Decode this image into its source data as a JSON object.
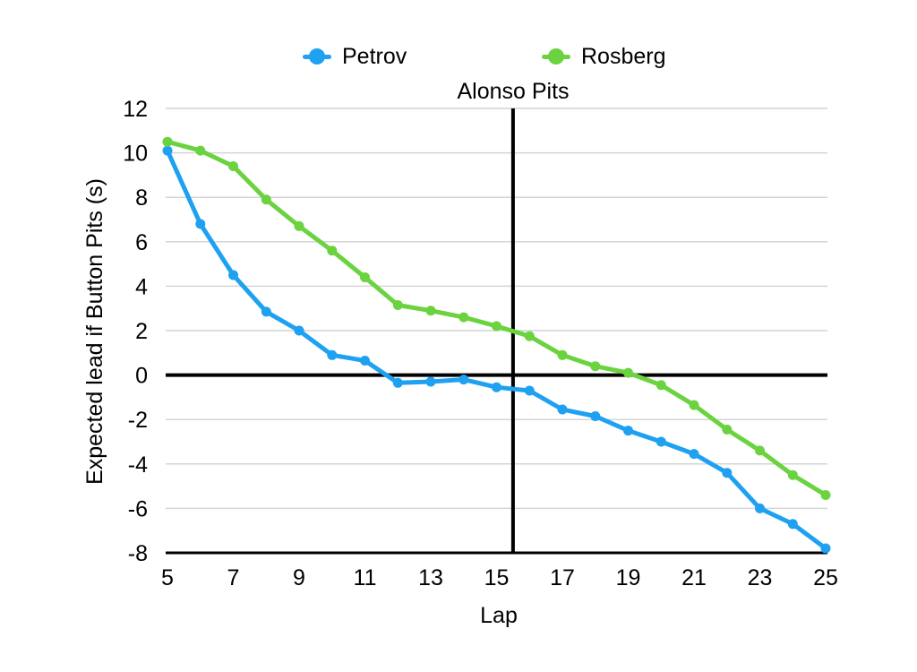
{
  "chart_data": {
    "type": "line",
    "title": "Alonso Pits",
    "xlabel": "Lap",
    "ylabel": "Expected lead if Button Pits (s)",
    "x": [
      5,
      6,
      7,
      8,
      9,
      10,
      11,
      12,
      13,
      14,
      15,
      16,
      17,
      18,
      19,
      20,
      21,
      22,
      23,
      24,
      25
    ],
    "series": [
      {
        "name": "Petrov",
        "color": "#1FA1F1",
        "values": [
          10.1,
          6.8,
          4.5,
          2.85,
          2.0,
          0.9,
          0.65,
          -0.35,
          -0.3,
          -0.2,
          -0.55,
          -0.7,
          -1.55,
          -1.85,
          -2.5,
          -3.0,
          -3.55,
          -4.4,
          -6.0,
          -6.7,
          -7.8
        ]
      },
      {
        "name": "Rosberg",
        "color": "#6BD33F",
        "values": [
          10.5,
          10.1,
          9.4,
          7.9,
          6.7,
          5.6,
          4.4,
          3.15,
          2.9,
          2.6,
          2.2,
          1.75,
          0.9,
          0.4,
          0.1,
          -0.45,
          -1.35,
          -2.45,
          -3.4,
          -4.5,
          -5.4
        ]
      }
    ],
    "xticks": [
      5,
      7,
      9,
      11,
      13,
      15,
      17,
      19,
      21,
      23,
      25
    ],
    "yticks": [
      12,
      10,
      8,
      6,
      4,
      2,
      0,
      -2,
      -4,
      -6,
      -8
    ],
    "xlim": [
      5,
      25
    ],
    "ylim": [
      -8,
      12
    ],
    "grid": "horizontal",
    "gridline_color": "#d4d4d4",
    "axis_color": "#000000",
    "legend_position": "top",
    "zero_line": true,
    "annotation": {
      "label": "Alonso Pits",
      "x": 15.5
    }
  }
}
